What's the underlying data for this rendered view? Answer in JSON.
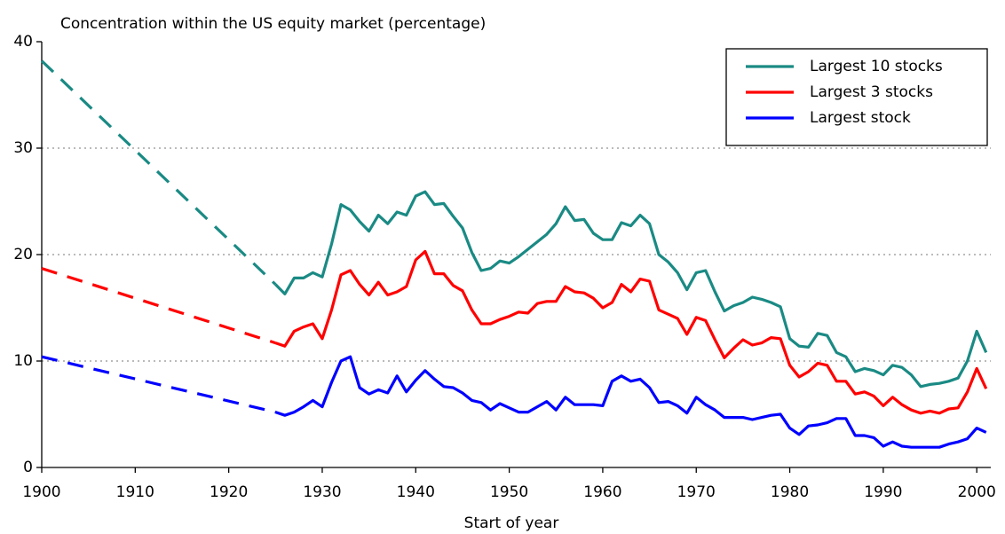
{
  "chart_data": {
    "type": "line",
    "title": "Concentration within the US equity market (percentage)",
    "x_label": "Start of year",
    "x": [
      1900,
      1925,
      1926,
      1927,
      1928,
      1929,
      1930,
      1931,
      1932,
      1933,
      1934,
      1935,
      1936,
      1937,
      1938,
      1939,
      1940,
      1941,
      1942,
      1943,
      1944,
      1945,
      1946,
      1947,
      1948,
      1949,
      1950,
      1951,
      1952,
      1953,
      1954,
      1955,
      1956,
      1957,
      1958,
      1959,
      1960,
      1961,
      1962,
      1963,
      1964,
      1965,
      1966,
      1967,
      1968,
      1969,
      1970,
      1971,
      1972,
      1973,
      1974,
      1975,
      1976,
      1977,
      1978,
      1979,
      1980,
      1981,
      1982,
      1983,
      1984,
      1985,
      1986,
      1987,
      1988,
      1989,
      1990,
      1991,
      1992,
      1993,
      1994,
      1995,
      1996,
      1997,
      1998,
      1999,
      2000,
      2001
    ],
    "series": [
      {
        "name": "Largest 10 stocks",
        "color": "#1a8a84",
        "values": [
          38.2,
          17.2,
          16.3,
          17.8,
          17.8,
          18.3,
          17.9,
          21,
          24.7,
          24.2,
          23.1,
          22.2,
          23.7,
          22.9,
          24.0,
          23.7,
          25.5,
          25.9,
          24.7,
          24.8,
          23.6,
          22.5,
          20.2,
          18.5,
          18.7,
          19.4,
          19.2,
          19.8,
          20.5,
          21.2,
          21.9,
          22.9,
          24.5,
          23.2,
          23.3,
          22.0,
          21.4,
          21.4,
          23.0,
          22.7,
          23.7,
          22.9,
          20.0,
          19.3,
          18.3,
          16.7,
          18.3,
          18.5,
          16.5,
          14.7,
          15.2,
          15.5,
          16.0,
          15.8,
          15.5,
          15.1,
          12.1,
          11.4,
          11.3,
          12.6,
          12.4,
          10.8,
          10.4,
          9.0,
          9.3,
          9.1,
          8.7,
          9.6,
          9.4,
          8.7,
          7.6,
          7.8,
          7.9,
          8.1,
          8.4,
          10.0,
          12.8,
          10.8
        ]
      },
      {
        "name": "Largest 3 stocks",
        "color": "#ff0000",
        "values": [
          18.7,
          11.7,
          11.4,
          12.8,
          13.2,
          13.5,
          12.1,
          14.8,
          18.1,
          18.5,
          17.2,
          16.2,
          17.4,
          16.2,
          16.5,
          17.0,
          19.5,
          20.3,
          18.2,
          18.2,
          17.1,
          16.6,
          14.8,
          13.5,
          13.5,
          13.9,
          14.2,
          14.6,
          14.5,
          15.4,
          15.6,
          15.6,
          17.0,
          16.5,
          16.4,
          15.9,
          15.0,
          15.5,
          17.2,
          16.5,
          17.7,
          17.5,
          14.8,
          14.4,
          14.0,
          12.5,
          14.1,
          13.8,
          12.0,
          10.3,
          11.2,
          12.0,
          11.5,
          11.7,
          12.2,
          12.1,
          9.6,
          8.5,
          9.0,
          9.8,
          9.6,
          8.1,
          8.1,
          6.9,
          7.1,
          6.7,
          5.8,
          6.6,
          5.9,
          5.4,
          5.1,
          5.3,
          5.1,
          5.5,
          5.6,
          7.1,
          9.3,
          7.4
        ]
      },
      {
        "name": "Largest stock",
        "color": "#0000ff",
        "values": [
          10.4,
          5.2,
          4.9,
          5.2,
          5.7,
          6.3,
          5.7,
          8.0,
          10.0,
          10.4,
          7.5,
          6.9,
          7.3,
          7.0,
          8.6,
          7.1,
          8.2,
          9.1,
          8.3,
          7.6,
          7.5,
          7.0,
          6.3,
          6.1,
          5.4,
          6.0,
          5.6,
          5.2,
          5.2,
          5.7,
          6.2,
          5.4,
          6.6,
          5.9,
          5.9,
          5.9,
          5.8,
          8.1,
          8.6,
          8.1,
          8.3,
          7.5,
          6.1,
          6.2,
          5.8,
          5.1,
          6.6,
          5.9,
          5.4,
          4.7,
          4.7,
          4.7,
          4.5,
          4.7,
          4.9,
          5.0,
          3.7,
          3.1,
          3.9,
          4.0,
          4.2,
          4.6,
          4.6,
          3.0,
          3.0,
          2.8,
          2.0,
          2.4,
          2.0,
          1.9,
          1.9,
          1.9,
          1.9,
          2.2,
          2.4,
          2.7,
          3.7,
          3.3
        ]
      }
    ],
    "dashed_segments": [
      [
        1900,
        1925
      ]
    ],
    "xlim": [
      1900,
      2001.5
    ],
    "xticks": [
      1900,
      1910,
      1920,
      1930,
      1940,
      1950,
      1960,
      1970,
      1980,
      1990,
      2000
    ],
    "ylim": [
      0,
      40
    ],
    "yticks": [
      0,
      10,
      20,
      30,
      40
    ],
    "grid": true,
    "legend": "top-right"
  }
}
